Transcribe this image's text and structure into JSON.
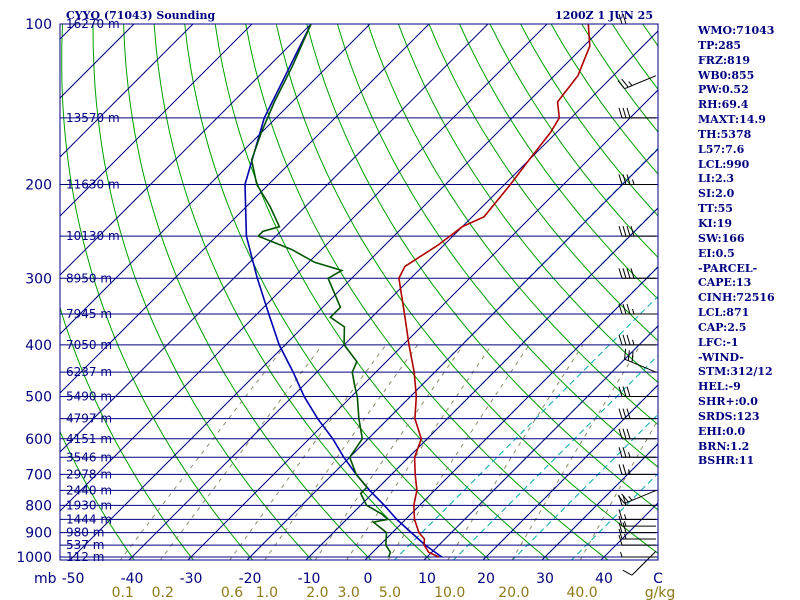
{
  "chart_data": {
    "type": "skew-t sounding",
    "title": "CYYQ (71043) Sounding",
    "time": "1200Z  1 JUN 25",
    "pressure_labels": [
      "100",
      "200",
      "300",
      "400",
      "500",
      "600",
      "700",
      "800",
      "900",
      "1000"
    ],
    "pressure_label_levels": [
      100,
      200,
      300,
      400,
      500,
      600,
      700,
      800,
      900,
      1000
    ],
    "height_levels": [
      {
        "p": 100,
        "label": "16270 m"
      },
      {
        "p": 150,
        "label": "13570 m"
      },
      {
        "p": 200,
        "label": "11630 m"
      },
      {
        "p": 250,
        "label": "10130 m"
      },
      {
        "p": 300,
        "label": "8950 m"
      },
      {
        "p": 350,
        "label": "7945 m"
      },
      {
        "p": 400,
        "label": "7050 m"
      },
      {
        "p": 450,
        "label": "6237 m"
      },
      {
        "p": 500,
        "label": "5490 m"
      },
      {
        "p": 550,
        "label": "4797 m"
      },
      {
        "p": 600,
        "label": "4151 m"
      },
      {
        "p": 650,
        "label": "3546 m"
      },
      {
        "p": 700,
        "label": "2978 m"
      },
      {
        "p": 750,
        "label": "2440 m"
      },
      {
        "p": 800,
        "label": "1930 m"
      },
      {
        "p": 850,
        "label": "1444 m"
      },
      {
        "p": 900,
        "label": "980 m"
      },
      {
        "p": 950,
        "label": "537 m"
      },
      {
        "p": 1000,
        "label": "112 m"
      }
    ],
    "x_axis_label": "mb",
    "temperature_ticks": [
      "-50",
      "-40",
      "-30",
      "-20",
      "-10",
      "0",
      "10",
      "20",
      "30",
      "40",
      "C"
    ],
    "temperature_tick_values": [
      -50,
      -40,
      -30,
      -20,
      -10,
      0,
      10,
      20,
      30,
      40
    ],
    "mixing_ratio_labels": [
      "0.1",
      "0.2",
      "0.6",
      "1.0",
      "2.0",
      "3.0",
      "5.0",
      "10.0",
      "20.0",
      "40.0",
      "g/kg"
    ],
    "mixing_ratio_values": [
      0.1,
      0.2,
      0.6,
      1.0,
      2.0,
      3.0,
      5.0,
      10.0,
      20.0,
      40.0
    ],
    "temperature_profile": [
      [
        1000,
        12
      ],
      [
        980,
        9.5
      ],
      [
        950,
        7.5
      ],
      [
        925,
        6.5
      ],
      [
        900,
        4.5
      ],
      [
        850,
        1.5
      ],
      [
        800,
        -1
      ],
      [
        750,
        -3
      ],
      [
        700,
        -6
      ],
      [
        650,
        -9
      ],
      [
        600,
        -11
      ],
      [
        550,
        -15.5
      ],
      [
        500,
        -19
      ],
      [
        450,
        -23.5
      ],
      [
        400,
        -29
      ],
      [
        350,
        -35
      ],
      [
        300,
        -42
      ],
      [
        285,
        -43
      ],
      [
        260,
        -41
      ],
      [
        250,
        -40.5
      ],
      [
        240,
        -40
      ],
      [
        230,
        -38
      ],
      [
        200,
        -39
      ],
      [
        180,
        -40
      ],
      [
        160,
        -41
      ],
      [
        150,
        -42
      ],
      [
        140,
        -45
      ],
      [
        125,
        -46
      ],
      [
        110,
        -49
      ],
      [
        100,
        -53
      ]
    ],
    "dewpoint_profile": [
      [
        1000,
        3.5
      ],
      [
        980,
        3
      ],
      [
        950,
        1
      ],
      [
        900,
        -1
      ],
      [
        860,
        -5
      ],
      [
        850,
        -3
      ],
      [
        830,
        -5
      ],
      [
        800,
        -9
      ],
      [
        760,
        -12
      ],
      [
        740,
        -12
      ],
      [
        700,
        -16
      ],
      [
        650,
        -20
      ],
      [
        600,
        -21
      ],
      [
        550,
        -25
      ],
      [
        500,
        -29
      ],
      [
        480,
        -31
      ],
      [
        450,
        -34
      ],
      [
        430,
        -35
      ],
      [
        400,
        -40
      ],
      [
        370,
        -43
      ],
      [
        355,
        -47
      ],
      [
        340,
        -47
      ],
      [
        300,
        -54
      ],
      [
        290,
        -53
      ],
      [
        280,
        -59
      ],
      [
        265,
        -65
      ],
      [
        250,
        -73
      ],
      [
        245,
        -73
      ],
      [
        240,
        -71
      ],
      [
        220,
        -76
      ],
      [
        200,
        -82
      ],
      [
        180,
        -87
      ],
      [
        160,
        -90
      ],
      [
        140,
        -93
      ],
      [
        120,
        -96
      ],
      [
        100,
        -100
      ]
    ],
    "parcel_profile": [
      [
        1000,
        12.5
      ],
      [
        950,
        7.7
      ],
      [
        900,
        3.2
      ],
      [
        850,
        -1.5
      ],
      [
        800,
        -6
      ],
      [
        750,
        -11
      ],
      [
        700,
        -16
      ],
      [
        650,
        -21
      ],
      [
        600,
        -26
      ],
      [
        550,
        -32
      ],
      [
        500,
        -38
      ],
      [
        450,
        -44
      ],
      [
        400,
        -51
      ],
      [
        350,
        -58
      ],
      [
        300,
        -66
      ],
      [
        250,
        -75
      ],
      [
        200,
        -84
      ],
      [
        150,
        -92
      ],
      [
        100,
        -100
      ]
    ],
    "wind_barbs": [
      [
        1000,
        "W",
        5
      ],
      [
        975,
        "SW",
        10
      ],
      [
        950,
        "W",
        10
      ],
      [
        925,
        "W",
        15
      ],
      [
        900,
        "W",
        20
      ],
      [
        875,
        "W",
        15
      ],
      [
        850,
        "W",
        15
      ],
      [
        800,
        "W",
        20
      ],
      [
        750,
        "WSW",
        25
      ],
      [
        700,
        "W",
        25
      ],
      [
        650,
        "W",
        25
      ],
      [
        600,
        "W",
        30
      ],
      [
        550,
        "W",
        30
      ],
      [
        500,
        "W",
        30
      ],
      [
        450,
        "WNW",
        30
      ],
      [
        400,
        "W",
        35
      ],
      [
        350,
        "W",
        35
      ],
      [
        300,
        "W",
        40
      ],
      [
        250,
        "W",
        40
      ],
      [
        200,
        "W",
        35
      ],
      [
        150,
        "W",
        30
      ],
      [
        125,
        "WSW",
        25
      ],
      [
        100,
        "W",
        20
      ]
    ],
    "colors": {
      "frame": "#000080",
      "isobar": "#000080",
      "isotherm": "#000080",
      "dry_adiabat": "#00a000",
      "moist_adiabat": "#00aaaa",
      "mixing_ratio": "#8c8c6e",
      "temperature": "#b00000",
      "dewpoint": "#005500",
      "parcel": "#0000b0",
      "barbs": "#000000"
    }
  },
  "indices": [
    "WMO:71043",
    "TP:285",
    "FRZ:819",
    "WB0:855",
    "PW:0.52",
    "RH:69.4",
    "MAXT:14.9",
    "TH:5378",
    "L57:7.6",
    "LCL:990",
    "LI:2.3",
    "SI:2.0",
    "TT:55",
    "KI:19",
    "SW:166",
    "EI:0.5",
    "-PARCEL-",
    "CAPE:13",
    "CINH:72516",
    "LCL:871",
    "CAP:2.5",
    "LFC:-1",
    "-WIND-",
    "STM:312/12",
    "HEL:-9",
    "SHR+:0.0",
    "SRDS:123",
    "EHI:0.0",
    "BRN:1.2",
    "BSHR:11"
  ]
}
